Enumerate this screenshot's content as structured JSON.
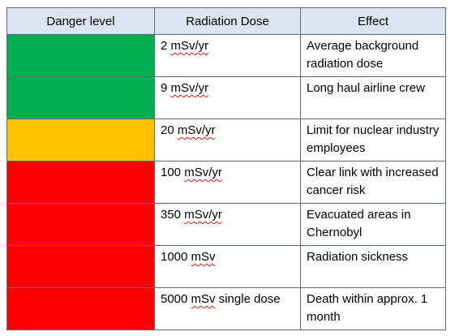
{
  "headers": {
    "danger": "Danger level",
    "dose": "Radiation  Dose",
    "effect": "Effect"
  },
  "colors": {
    "green": "#00b050",
    "amber": "#ffc000",
    "red": "#ff0000",
    "header_bg": "#dbe5f1"
  },
  "rows": [
    {
      "level_color": "#00b050",
      "dose_value": "2",
      "dose_unit": "mSv/yr",
      "dose_suffix": "",
      "effect": "Average background radiation dose"
    },
    {
      "level_color": "#00b050",
      "dose_value": "9",
      "dose_unit": "mSv/yr",
      "dose_suffix": "",
      "effect": "Long haul airline crew"
    },
    {
      "level_color": "#ffc000",
      "dose_value": "20",
      "dose_unit": "mSv/yr",
      "dose_suffix": "",
      "effect": "Limit for nuclear industry employees"
    },
    {
      "level_color": "#ff0000",
      "dose_value": "100",
      "dose_unit": "mSv/yr",
      "dose_suffix": "",
      "effect": "Clear link with increased cancer risk"
    },
    {
      "level_color": "#ff0000",
      "dose_value": "350",
      "dose_unit": "mSv/yr",
      "dose_suffix": "",
      "effect": "Evacuated areas in Chernobyl"
    },
    {
      "level_color": "#ff0000",
      "dose_value": "1000",
      "dose_unit": "mSv",
      "dose_suffix": "",
      "effect": "Radiation sickness"
    },
    {
      "level_color": "#ff0000",
      "dose_value": "5000",
      "dose_unit": "mSv",
      "dose_suffix": "single dose",
      "effect": "Death within approx. 1 month"
    }
  ]
}
